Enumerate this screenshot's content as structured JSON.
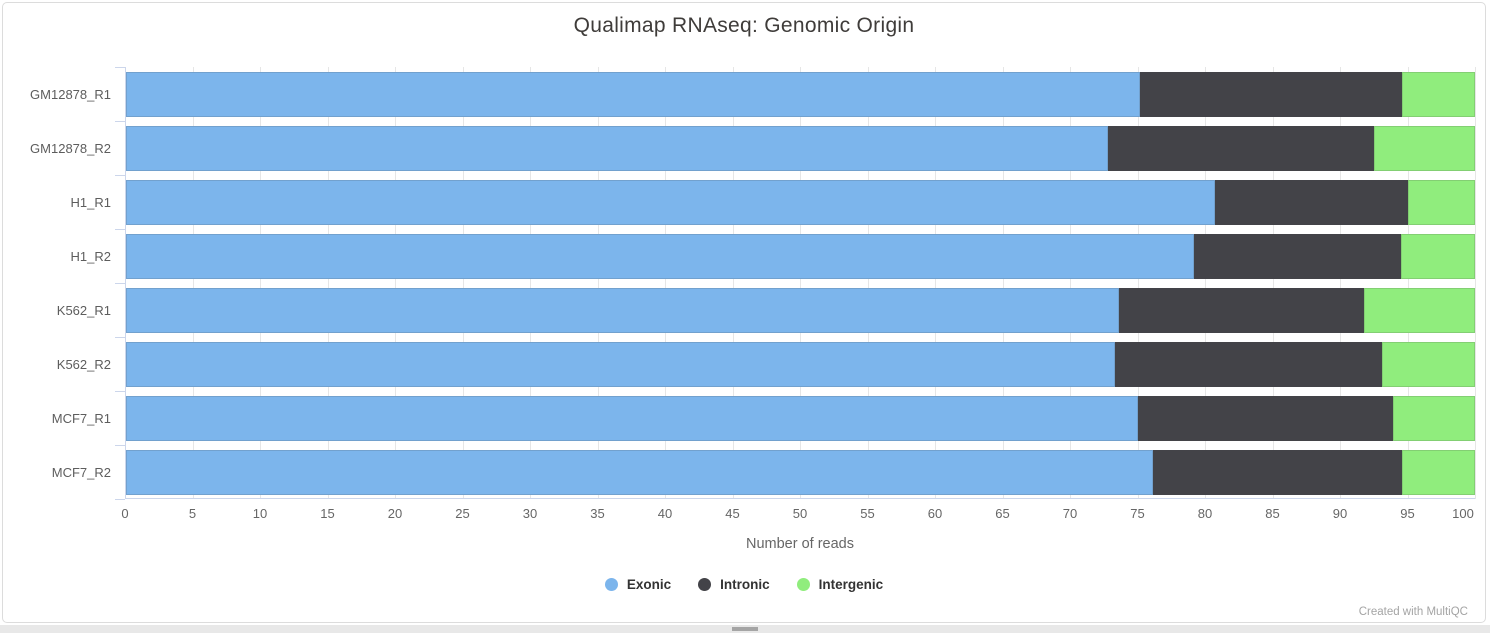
{
  "title": "Qualimap RNAseq: Genomic Origin",
  "footer": "Created with MultiQC",
  "chart_data": {
    "type": "bar",
    "orientation": "horizontal",
    "stacked": true,
    "title": "Qualimap RNAseq: Genomic Origin",
    "xlabel": "Number of reads",
    "categories": [
      "GM12878_R1",
      "GM12878_R2",
      "H1_R1",
      "H1_R2",
      "K562_R1",
      "K562_R2",
      "MCF7_R1",
      "MCF7_R2"
    ],
    "series": [
      {
        "name": "Exonic",
        "color": "#7cb5ec",
        "values": [
          75.2,
          72.8,
          80.7,
          79.2,
          73.6,
          73.3,
          75.0,
          76.1
        ]
      },
      {
        "name": "Intronic",
        "color": "#434348",
        "values": [
          19.4,
          19.7,
          14.3,
          15.3,
          18.2,
          19.8,
          18.9,
          18.5
        ]
      },
      {
        "name": "Intergenic",
        "color": "#90ed7d",
        "values": [
          5.4,
          7.5,
          5.0,
          5.5,
          8.2,
          6.9,
          6.1,
          5.4
        ]
      }
    ],
    "xlim": [
      0,
      100
    ],
    "xticks": [
      0,
      5,
      10,
      15,
      20,
      25,
      30,
      35,
      40,
      45,
      50,
      55,
      60,
      65,
      70,
      75,
      80,
      85,
      90,
      95,
      100
    ],
    "grid": true,
    "legend_position": "bottom",
    "value_format": "percent_of_total"
  },
  "legend": {
    "items": [
      {
        "label": "Exonic",
        "color": "#7cb5ec"
      },
      {
        "label": "Intronic",
        "color": "#434348"
      },
      {
        "label": "Intergenic",
        "color": "#90ed7d"
      }
    ]
  }
}
